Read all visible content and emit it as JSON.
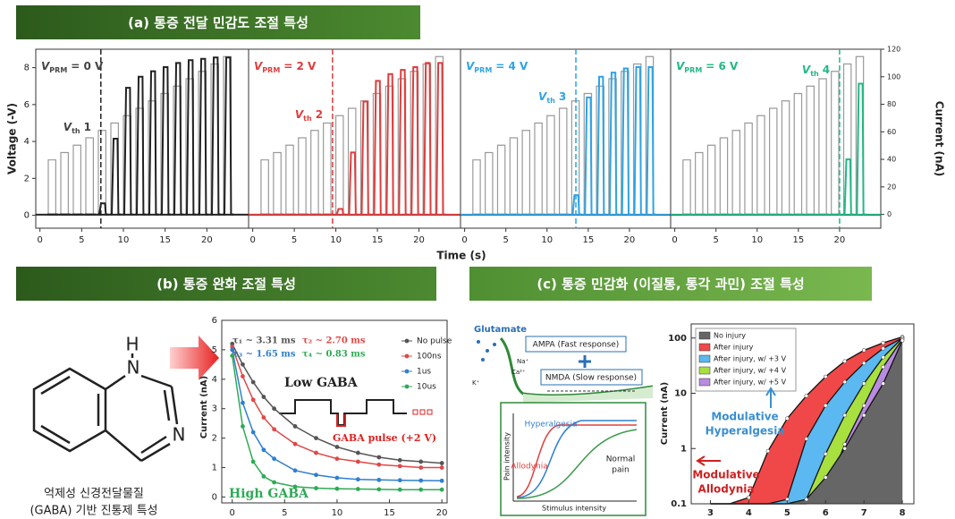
{
  "header_a": "(a) 통증 전달 민감도 조절 특성",
  "header_b": "(b) 통증 완화 조절 특성",
  "header_c": "(c) 통증 민감화 (이질통, 통각 과민) 조절 특성",
  "panel_a_xlabel": "Time (s)",
  "molecule": {
    "atoms": [
      "H",
      "N",
      "N"
    ],
    "caption": [
      "억제성 신경전달물질",
      "(GABA) 기반 진통제 특성"
    ]
  },
  "diagram": {
    "glutamate": "Glutamate",
    "ampa": "AMPA (Fast response)",
    "nmda": "NMDA (Slow response)",
    "ions": [
      "Na⁺",
      "Ca²⁺",
      "K⁺"
    ],
    "inset": {
      "hyperalgesia": "Hyperalgesia",
      "allodynia": "Allodynia",
      "normal": [
        "Normal",
        "pain"
      ],
      "ylabel": "Pain intensity",
      "xlabel": "Stimulus intensity"
    }
  },
  "chart_data": [
    {
      "type": "pulse",
      "x": [
        1,
        2.5,
        4,
        5.5,
        7,
        8.5,
        10,
        11.5,
        13,
        14.5,
        16,
        17.5,
        19,
        20.5,
        22
      ],
      "series": [
        {
          "color": "#9a9a9a",
          "values": [
            3,
            3.4,
            3.8,
            4.2,
            4.6,
            5,
            5.4,
            5.8,
            6.2,
            6.6,
            7,
            7.4,
            7.8,
            8.2,
            8.6
          ]
        },
        {
          "color": "#222222",
          "axis": "y2",
          "values": [
            0,
            0,
            0,
            0,
            8,
            55,
            92,
            100,
            104,
            107,
            110,
            112,
            113,
            114,
            114
          ]
        }
      ],
      "annotation": {
        "v": "V",
        "sub": "PRM",
        "rest": "= 0 V"
      },
      "threshold": {
        "x": 7.3,
        "label": {
          "v": "V",
          "sub": "th",
          "rest": "1"
        }
      },
      "xlim": [
        -0.5,
        25
      ],
      "xticks": [
        0,
        5,
        10,
        15,
        20
      ],
      "ylim": [
        -0.7,
        9
      ],
      "yticks": [
        0,
        2,
        4,
        6,
        8
      ],
      "ylabel": "Voltage (-V)",
      "y2lim": [
        -10,
        120
      ]
    },
    {
      "type": "pulse",
      "x": [
        1,
        2.5,
        4,
        5.5,
        7,
        8.5,
        10,
        11.5,
        13,
        14.5,
        16,
        17.5,
        19,
        20.5,
        22
      ],
      "series": [
        {
          "color": "#9a9a9a",
          "values": [
            3,
            3.4,
            3.8,
            4.2,
            4.6,
            5,
            5.4,
            5.8,
            6.2,
            6.6,
            7,
            7.4,
            7.8,
            8.2,
            8.6
          ]
        },
        {
          "color": "#e03c3c",
          "axis": "y2",
          "values": [
            0,
            0,
            0,
            0,
            0,
            0,
            4,
            45,
            82,
            97,
            102,
            105,
            107,
            110,
            110
          ]
        }
      ],
      "annotation": {
        "v": "V",
        "sub": "PRM",
        "rest": "= 2 V"
      },
      "threshold": {
        "x": 9.6,
        "label": {
          "v": "V",
          "sub": "th",
          "rest": "2"
        }
      },
      "xlim": [
        -0.5,
        25
      ],
      "xticks": [
        0,
        5,
        10,
        15,
        20
      ],
      "ylim": [
        -0.7,
        9
      ],
      "y2lim": [
        -10,
        120
      ]
    },
    {
      "type": "pulse",
      "x": [
        1,
        2.5,
        4,
        5.5,
        7,
        8.5,
        10,
        11.5,
        13,
        14.5,
        16,
        17.5,
        19,
        20.5,
        22
      ],
      "series": [
        {
          "color": "#9a9a9a",
          "values": [
            3,
            3.4,
            3.8,
            4.2,
            4.6,
            5,
            5.4,
            5.8,
            6.2,
            6.6,
            7,
            7.4,
            7.8,
            8.2,
            8.6
          ]
        },
        {
          "color": "#2ea3e6",
          "axis": "y2",
          "values": [
            0,
            0,
            0,
            0,
            0,
            0,
            0,
            0,
            14,
            85,
            100,
            103,
            106,
            107,
            107
          ]
        }
      ],
      "annotation": {
        "v": "V",
        "sub": "PRM",
        "rest": "= 4 V"
      },
      "threshold": {
        "x": 13.5,
        "label": {
          "v": "V",
          "sub": "th",
          "rest": "3"
        }
      },
      "xlim": [
        -0.5,
        25
      ],
      "xticks": [
        0,
        5,
        10,
        15,
        20
      ],
      "ylim": [
        -0.7,
        9
      ],
      "y2lim": [
        -10,
        120
      ]
    },
    {
      "type": "pulse",
      "x": [
        1,
        2.5,
        4,
        5.5,
        7,
        8.5,
        10,
        11.5,
        13,
        14.5,
        16,
        17.5,
        19,
        20.5,
        22
      ],
      "series": [
        {
          "color": "#9a9a9a",
          "values": [
            3,
            3.4,
            3.8,
            4.2,
            4.6,
            5,
            5.4,
            5.8,
            6.2,
            6.6,
            7,
            7.4,
            7.8,
            8.2,
            8.6
          ]
        },
        {
          "color": "#22b883",
          "axis": "y2",
          "values": [
            0,
            0,
            0,
            0,
            0,
            0,
            0,
            0,
            0,
            0,
            0,
            0,
            0,
            40,
            95
          ]
        }
      ],
      "annotation": {
        "v": "V",
        "sub": "PRM",
        "rest": "= 6 V"
      },
      "threshold": {
        "x": 20,
        "label": {
          "v": "V",
          "sub": "th",
          "rest": "4"
        }
      },
      "xlim": [
        -0.5,
        25
      ],
      "xticks": [
        0,
        5,
        10,
        15,
        20
      ],
      "ylim": [
        -0.7,
        9
      ],
      "y2lim": [
        -10,
        120
      ],
      "y2ticks": [
        0,
        20,
        40,
        60,
        80,
        100,
        120
      ],
      "y2label": "Current (nA)"
    },
    {
      "type": "scatter-fit",
      "x": [
        0,
        1,
        2,
        3,
        4,
        6,
        8,
        10,
        12,
        14,
        16,
        18,
        20
      ],
      "series": [
        {
          "name": "No pulse",
          "color": "#555555",
          "values": [
            5.2,
            4.5,
            3.9,
            3.4,
            3.0,
            2.4,
            2.0,
            1.7,
            1.5,
            1.35,
            1.25,
            1.2,
            1.15
          ]
        },
        {
          "name": "100ns",
          "color": "#e04848",
          "values": [
            5.1,
            4.1,
            3.3,
            2.7,
            2.3,
            1.8,
            1.5,
            1.3,
            1.2,
            1.1,
            1.05,
            1.0,
            1.0
          ]
        },
        {
          "name": "1us",
          "color": "#2f7fd0",
          "values": [
            5.0,
            3.2,
            2.2,
            1.6,
            1.3,
            0.9,
            0.75,
            0.65,
            0.6,
            0.58,
            0.57,
            0.56,
            0.55
          ]
        },
        {
          "name": "10us",
          "color": "#2eaa55",
          "values": [
            4.8,
            2.4,
            1.2,
            0.7,
            0.5,
            0.35,
            0.3,
            0.28,
            0.27,
            0.26,
            0.25,
            0.25,
            0.25
          ]
        }
      ],
      "fit_labels": [
        "τ₁ ~ 3.31 ms",
        "τ₂ ~ 2.70 ms",
        "τ₃ ~ 1.65 ms",
        "τ₄ ~ 0.83 ms"
      ],
      "annotations": {
        "low": "Low GABA",
        "high": "High GABA",
        "pulse": "GABA pulse (+2 V)"
      },
      "xlim": [
        -1,
        20.5
      ],
      "xticks": [
        0,
        5,
        10,
        15,
        20
      ],
      "ylim": [
        -0.2,
        6
      ],
      "yticks": [
        0,
        1,
        2,
        3,
        4,
        5,
        6
      ],
      "ylabel": "Current (nA)",
      "legend": "upper right"
    },
    {
      "type": "area",
      "log_y": true,
      "x": [
        3,
        3.5,
        4,
        4.5,
        5,
        5.5,
        6,
        6.5,
        7,
        7.5,
        8
      ],
      "series": [
        {
          "name": "No injury",
          "color": "#666666",
          "values": [
            0.1,
            0.1,
            0.1,
            0.1,
            0.1,
            0.12,
            0.3,
            1,
            4,
            15,
            90
          ]
        },
        {
          "name": "After injury",
          "color": "#f04848",
          "values": [
            0.1,
            0.1,
            0.13,
            0.9,
            3.5,
            9,
            20,
            38,
            60,
            82,
            105
          ]
        },
        {
          "name": "After injury, w/ +3 V",
          "color": "#5bb8f0",
          "values": [
            0.1,
            0.1,
            0.1,
            0.1,
            0.12,
            1.5,
            6,
            16,
            35,
            65,
            100
          ]
        },
        {
          "name": "After injury, w/ +4 V",
          "color": "#a8e040",
          "values": [
            0.1,
            0.1,
            0.1,
            0.1,
            0.1,
            0.12,
            0.8,
            4,
            15,
            45,
            100
          ]
        },
        {
          "name": "After injury, w/ +5 V",
          "color": "#b98be0",
          "values": [
            0.1,
            0.1,
            0.1,
            0.1,
            0.1,
            0.1,
            0.15,
            1.2,
            6,
            30,
            95
          ]
        }
      ],
      "annotations": {
        "hyperalgesia": [
          "Modulative",
          "Hyperalgesia"
        ],
        "allodynia": [
          "Modulative",
          "Allodynia"
        ]
      },
      "xlim": [
        2.5,
        8.3
      ],
      "xticks": [
        3,
        4,
        5,
        6,
        7,
        8
      ],
      "ylim": [
        0.1,
        180
      ],
      "yticks": [
        0.1,
        1,
        10,
        100
      ],
      "ylabel": "Current (nA)",
      "legend": "upper left"
    }
  ]
}
